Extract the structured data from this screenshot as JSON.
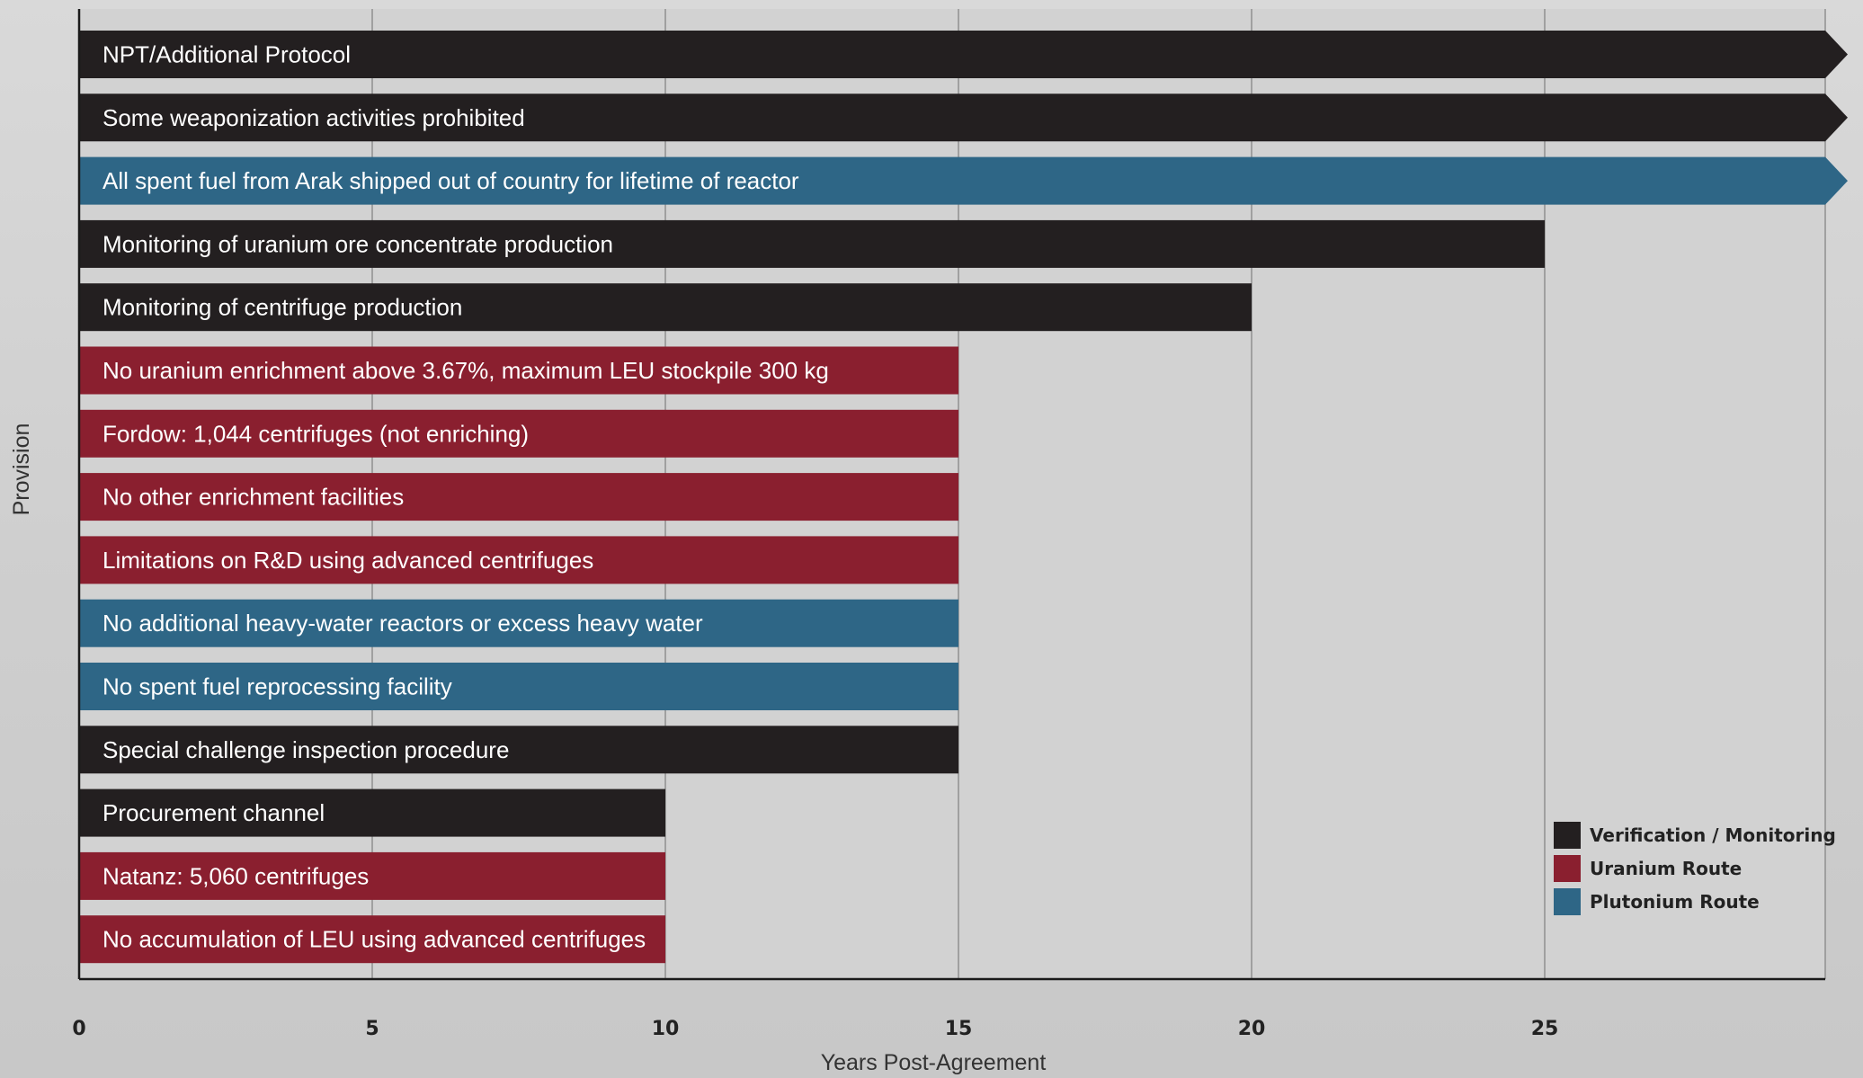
{
  "chart_data": {
    "type": "bar",
    "orientation": "horizontal",
    "xlabel": "Years Post-Agreement",
    "ylabel": "Provision",
    "xlim": [
      0,
      30
    ],
    "xticks": [
      0,
      5,
      10,
      15,
      20,
      25
    ],
    "grid": true,
    "legend_position": "bottom-right",
    "legend": [
      {
        "name": "Verification / Monitoring",
        "color": "#231f20"
      },
      {
        "name": "Uranium Route",
        "color": "#8a1f2f"
      },
      {
        "name": "Plutonium Route",
        "color": "#2e6686"
      }
    ],
    "bars": [
      {
        "label": "NPT/Additional Protocol",
        "value": 30,
        "open_ended": true,
        "category": "Verification / Monitoring"
      },
      {
        "label": "Some weaponization activities prohibited",
        "value": 30,
        "open_ended": true,
        "category": "Verification / Monitoring"
      },
      {
        "label": "All spent fuel from Arak shipped out of country for lifetime of reactor",
        "value": 30,
        "open_ended": true,
        "category": "Plutonium Route"
      },
      {
        "label": "Monitoring of uranium ore concentrate production",
        "value": 25,
        "open_ended": false,
        "category": "Verification / Monitoring"
      },
      {
        "label": "Monitoring of centrifuge production",
        "value": 20,
        "open_ended": false,
        "category": "Verification / Monitoring"
      },
      {
        "label": "No uranium enrichment above 3.67%, maximum LEU stockpile 300 kg",
        "value": 15,
        "open_ended": false,
        "category": "Uranium Route"
      },
      {
        "label": "Fordow: 1,044 centrifuges (not enriching)",
        "value": 15,
        "open_ended": false,
        "category": "Uranium Route"
      },
      {
        "label": "No other enrichment facilities",
        "value": 15,
        "open_ended": false,
        "category": "Uranium Route"
      },
      {
        "label": "Limitations on R&D using advanced centrifuges",
        "value": 15,
        "open_ended": false,
        "category": "Uranium Route"
      },
      {
        "label": "No additional heavy-water reactors or excess heavy water",
        "value": 15,
        "open_ended": false,
        "category": "Plutonium Route"
      },
      {
        "label": "No spent fuel reprocessing facility",
        "value": 15,
        "open_ended": false,
        "category": "Plutonium Route"
      },
      {
        "label": "Special challenge inspection procedure",
        "value": 15,
        "open_ended": false,
        "category": "Verification / Monitoring"
      },
      {
        "label": "Procurement channel",
        "value": 10,
        "open_ended": false,
        "category": "Verification / Monitoring"
      },
      {
        "label": "Natanz: 5,060 centrifuges",
        "value": 10,
        "open_ended": false,
        "category": "Uranium Route"
      },
      {
        "label": "No accumulation of LEU using advanced centrifuges",
        "value": 10,
        "open_ended": false,
        "category": "Uranium Route"
      }
    ]
  }
}
